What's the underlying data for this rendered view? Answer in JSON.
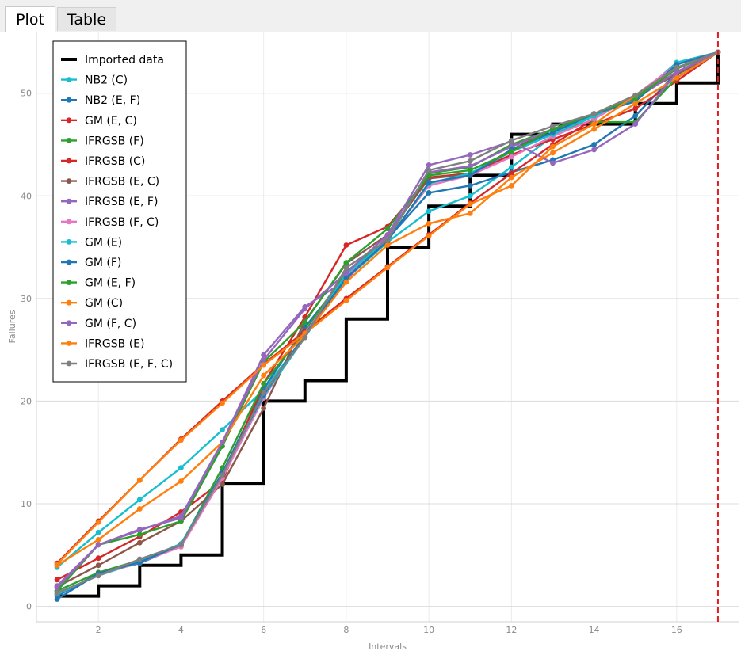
{
  "tabs": [
    {
      "label": "Plot",
      "active": true
    },
    {
      "label": "Table",
      "active": false
    }
  ],
  "chart_data": {
    "type": "line",
    "xlabel": "Intervals",
    "ylabel": "Failures",
    "xlim": [
      0.5,
      17.5
    ],
    "ylim": [
      -1.5,
      56
    ],
    "xticks": [
      2,
      4,
      6,
      8,
      10,
      12,
      14,
      16
    ],
    "yticks": [
      0,
      10,
      20,
      30,
      40,
      50
    ],
    "grid": true,
    "legend_position": "top-left",
    "vline": {
      "x": 17,
      "color": "#e41a1c",
      "style": "dashed"
    },
    "imported": {
      "name": "Imported data",
      "color": "#000000",
      "x": [
        1,
        2,
        3,
        4,
        5,
        6,
        7,
        8,
        9,
        10,
        11,
        12,
        13,
        14,
        15,
        16,
        17
      ],
      "values": [
        1,
        2,
        4,
        5,
        12,
        20,
        22,
        28,
        35,
        39,
        42,
        46,
        47,
        47,
        49,
        51,
        54
      ]
    },
    "series": [
      {
        "name": "NB2 (C)",
        "color": "#17becf",
        "values": [
          3.8,
          7.2,
          10.4,
          13.5,
          17.2,
          21.1,
          26.3,
          31.9,
          35.5,
          38.5,
          40.0,
          42.8,
          45.8,
          47.8,
          49.5,
          53.0,
          54.0
        ]
      },
      {
        "name": "NB2 (E, F)",
        "color": "#1f77b4",
        "values": [
          1.0,
          3.2,
          4.2,
          5.9,
          13.0,
          21.2,
          27.2,
          32.2,
          35.8,
          40.3,
          41.0,
          42.3,
          43.5,
          45.0,
          47.8,
          52.0,
          54.0
        ]
      },
      {
        "name": "GM (E, C)",
        "color": "#d62728",
        "values": [
          2.6,
          4.7,
          6.8,
          9.2,
          12.2,
          21.7,
          28.2,
          35.2,
          37.0,
          41.8,
          42.2,
          44.0,
          45.5,
          47.0,
          48.5,
          51.2,
          54.0
        ]
      },
      {
        "name": "IFRGSB (F)",
        "color": "#2ca02c",
        "values": [
          1.5,
          3.3,
          4.5,
          6.0,
          13.5,
          21.7,
          26.8,
          32.6,
          35.8,
          42.2,
          42.8,
          45.0,
          46.5,
          47.2,
          47.2,
          51.5,
          54.0
        ]
      },
      {
        "name": "IFRGSB (C)",
        "color": "#d62728",
        "values": [
          4.2,
          8.3,
          12.3,
          16.3,
          20.0,
          23.6,
          26.8,
          30.0,
          33.1,
          36.2,
          39.3,
          42.2,
          45.0,
          47.5,
          49.8,
          52.0,
          54.0
        ]
      },
      {
        "name": "IFRGSB (E, C)",
        "color": "#8c564b",
        "values": [
          1.9,
          4.0,
          6.2,
          8.3,
          11.9,
          19.3,
          27.8,
          33.4,
          36.2,
          41.7,
          42.1,
          44.5,
          46.5,
          48.0,
          49.8,
          51.8,
          54.0
        ]
      },
      {
        "name": "IFRGSB (E, F)",
        "color": "#9467bd",
        "values": [
          2.0,
          6.0,
          7.4,
          8.8,
          16.0,
          24.5,
          29.2,
          31.8,
          36.0,
          42.3,
          42.9,
          44.8,
          46.5,
          48.0,
          49.4,
          52.1,
          54.0
        ]
      },
      {
        "name": "IFRGSB (F, C)",
        "color": "#e377c2",
        "values": [
          1.2,
          3.0,
          4.3,
          5.8,
          12.5,
          20.3,
          26.6,
          32.2,
          35.8,
          41.0,
          42.0,
          43.8,
          45.8,
          47.5,
          49.8,
          52.8,
          54.0
        ]
      },
      {
        "name": "GM (E)",
        "color": "#17becf",
        "values": [
          1.2,
          3.0,
          4.4,
          6.1,
          13.0,
          20.5,
          26.2,
          32.4,
          35.7,
          41.2,
          42.2,
          44.3,
          46.0,
          47.8,
          49.5,
          52.5,
          54.0
        ]
      },
      {
        "name": "GM (F)",
        "color": "#1f77b4",
        "values": [
          0.7,
          3.2,
          4.3,
          6.0,
          13.0,
          20.6,
          26.5,
          32.0,
          35.6,
          41.3,
          42.0,
          44.5,
          46.2,
          48.0,
          49.2,
          52.8,
          54.0
        ]
      },
      {
        "name": "GM (E, F)",
        "color": "#2ca02c",
        "values": [
          1.5,
          6.0,
          7.0,
          8.3,
          15.6,
          23.8,
          27.7,
          33.5,
          36.8,
          42.0,
          42.5,
          44.3,
          46.5,
          48.0,
          49.5,
          52.4,
          54.0
        ]
      },
      {
        "name": "GM (C)",
        "color": "#ff7f0e",
        "values": [
          4.0,
          6.5,
          9.5,
          12.2,
          16.0,
          22.5,
          26.4,
          31.6,
          35.2,
          37.3,
          38.3,
          41.8,
          44.2,
          46.5,
          49.0,
          51.5,
          54.0
        ]
      },
      {
        "name": "GM (F, C)",
        "color": "#9467bd",
        "values": [
          1.8,
          6.0,
          7.5,
          8.6,
          16.0,
          24.0,
          29.0,
          32.5,
          36.2,
          43.0,
          44.0,
          45.3,
          43.2,
          44.5,
          47.0,
          52.0,
          54.0
        ]
      },
      {
        "name": "IFRGSB (E)",
        "color": "#ff7f0e",
        "values": [
          4.1,
          8.2,
          12.3,
          16.2,
          19.8,
          23.5,
          26.6,
          29.8,
          33.0,
          36.1,
          39.2,
          41.0,
          44.8,
          47.0,
          49.8,
          52.5,
          54.0
        ]
      },
      {
        "name": "IFRGSB (E, F, C)",
        "color": "#7f7f7f",
        "values": [
          1.3,
          3.0,
          4.6,
          6.0,
          12.8,
          20.8,
          26.2,
          33.0,
          35.7,
          42.5,
          43.4,
          45.4,
          46.8,
          48.0,
          49.8,
          52.5,
          54.0
        ]
      }
    ]
  }
}
